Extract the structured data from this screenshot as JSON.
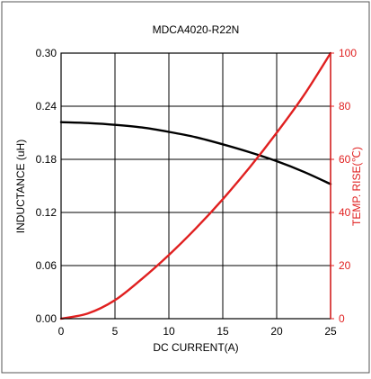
{
  "chart_data": {
    "type": "line",
    "title": "MDCA4020-R22N",
    "xlabel": "DC CURRENT(A)",
    "ylabel_left": "INDUCTANCE (uH)",
    "ylabel_right": "TEMP. RISE(℃)",
    "xlim": [
      0,
      25
    ],
    "ylim_left": [
      0,
      0.3
    ],
    "ylim_right": [
      0,
      100
    ],
    "x_ticks": [
      "0",
      "5",
      "10",
      "15",
      "20",
      "25"
    ],
    "y_left_ticks": [
      "0.00",
      "0.06",
      "0.12",
      "0.18",
      "0.24",
      "0.30"
    ],
    "y_right_ticks": [
      "0",
      "20",
      "40",
      "60",
      "80",
      "100"
    ],
    "grid": true,
    "colors": {
      "inductance": "#000000",
      "temp_rise": "#e02020",
      "right_axis": "#e02020"
    },
    "series": [
      {
        "axis": "left",
        "x": [
          0,
          2.5,
          5,
          7.5,
          10,
          12.5,
          15,
          17.5,
          20,
          22.5,
          25
        ],
        "values": [
          0.222,
          0.221,
          0.219,
          0.216,
          0.211,
          0.205,
          0.197,
          0.188,
          0.178,
          0.166,
          0.152
        ]
      },
      {
        "axis": "right",
        "x": [
          0,
          2.5,
          5,
          7.5,
          10,
          12.5,
          15,
          17.5,
          20,
          22.5,
          25
        ],
        "values": [
          0,
          2,
          7,
          15,
          24,
          34,
          45,
          57,
          70,
          84,
          100
        ]
      }
    ]
  }
}
